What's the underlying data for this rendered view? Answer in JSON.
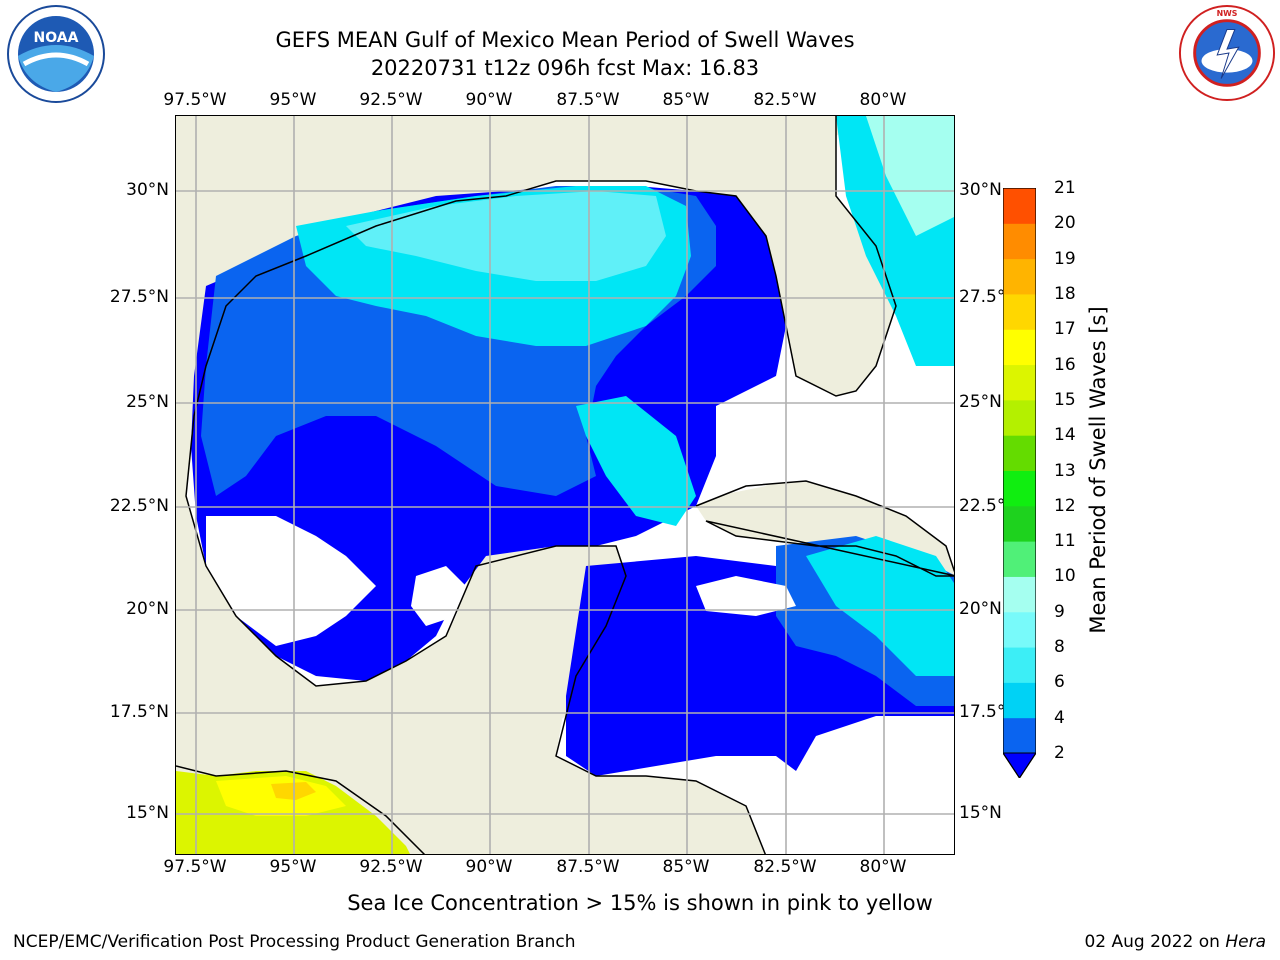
{
  "header": {
    "title_line1": "GEFS MEAN Gulf of Mexico Mean Period of Swell Waves",
    "title_line2": "20220731 t12z 096h fcst   Max: 16.83"
  },
  "logos": {
    "left": "NOAA",
    "right": "NATIONAL WEATHER SERVICE"
  },
  "map": {
    "lon_ticks": [
      "97.5°W",
      "95°W",
      "92.5°W",
      "90°W",
      "87.5°W",
      "85°W",
      "82.5°W",
      "80°W"
    ],
    "lat_ticks_left": [
      "30°N",
      "27.5°N",
      "25°N",
      "22.5°N",
      "20°N",
      "17.5°N",
      "15°N"
    ],
    "lat_ticks_right": [
      "30°N",
      "27.5°",
      "25°N",
      "22.5°",
      "20°N",
      "17.5°",
      "15°N"
    ],
    "colors": {
      "land": "#eeeedd",
      "ocean_undefined": "#ffffff",
      "grid": "#b0b0b0",
      "coast": "#000000"
    }
  },
  "colorbar": {
    "title": "Mean Period of Swell Waves [s]",
    "labels": [
      "2",
      "4",
      "6",
      "8",
      "9",
      "10",
      "11",
      "12",
      "13",
      "14",
      "15",
      "16",
      "17",
      "18",
      "19",
      "20",
      "21"
    ],
    "colors": [
      "#0a64f0",
      "#00d2f5",
      "#3ceef6",
      "#78fafa",
      "#a5fff0",
      "#50f078",
      "#1ed21e",
      "#10ee10",
      "#64dc00",
      "#b4f000",
      "#dcf500",
      "#ffff00",
      "#ffd700",
      "#ffb400",
      "#ff8c00",
      "#ff5000",
      "#ff0000"
    ],
    "extend_color": "#0000ff"
  },
  "note": "Sea Ice Concentration > 15% is shown in pink to yellow",
  "footer": {
    "left": "NCEP/EMC/Verification Post Processing Product Generation Branch",
    "right_prefix": "02 Aug 2022 on ",
    "right_host": "Hera"
  }
}
